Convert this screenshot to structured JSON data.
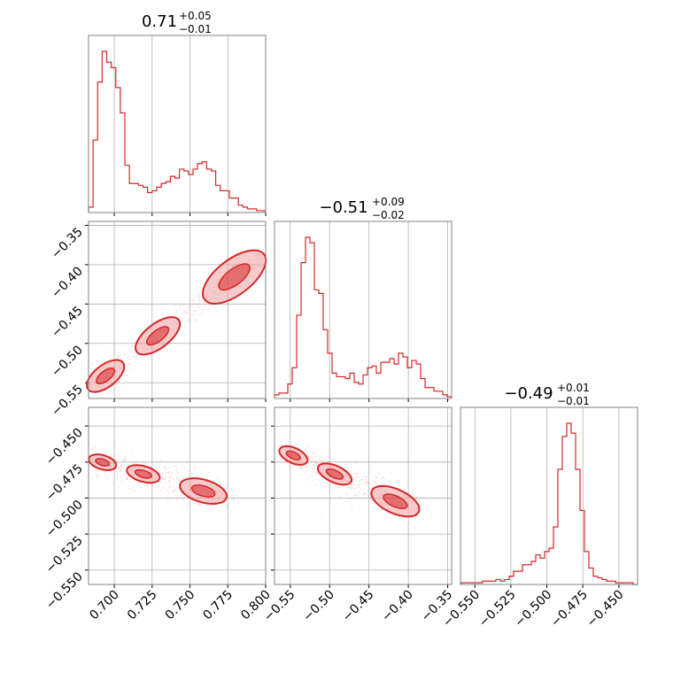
{
  "colors": {
    "accent": "#d62728",
    "fill": "#f0a0a3",
    "grid": "#b0b0b0"
  },
  "chart_data": [
    {
      "type": "histogram",
      "panel": "p11",
      "title": {
        "main": "0.71",
        "plus": "+0.05",
        "minus": "−0.01"
      },
      "xlim": [
        0.683,
        0.8
      ],
      "bins_x": [
        0.683,
        0.686,
        0.689,
        0.692,
        0.695,
        0.698,
        0.701,
        0.704,
        0.707,
        0.71,
        0.713,
        0.716,
        0.719,
        0.722,
        0.725,
        0.728,
        0.731,
        0.734,
        0.737,
        0.74,
        0.743,
        0.746,
        0.749,
        0.752,
        0.755,
        0.758,
        0.761,
        0.764,
        0.767,
        0.77,
        0.773,
        0.776,
        0.779,
        0.782,
        0.785,
        0.788,
        0.791,
        0.794,
        0.797,
        0.8
      ],
      "counts": [
        3,
        40,
        72,
        89,
        83,
        80,
        69,
        55,
        26,
        16,
        16,
        15,
        14,
        11,
        12,
        14,
        16,
        17,
        20,
        19,
        24,
        23,
        21,
        24,
        27,
        28,
        24,
        23,
        15,
        12,
        12,
        8,
        8,
        4,
        3,
        2,
        2,
        1,
        1
      ]
    },
    {
      "type": "scatter-contour",
      "panel": "p21",
      "xlim": [
        0.683,
        0.8
      ],
      "ylim": [
        -0.57,
        -0.345
      ],
      "yticks": [
        "−0.35",
        "−0.40",
        "−0.45",
        "−0.50",
        "−0.55"
      ],
      "ytick_values": [
        -0.35,
        -0.4,
        -0.45,
        -0.5,
        -0.55
      ],
      "trend_x": [
        0.685,
        0.8
      ],
      "trend_y": [
        -0.555,
        -0.385
      ]
    },
    {
      "type": "histogram",
      "panel": "p22",
      "title": {
        "main": "−0.51",
        "plus": "+0.09",
        "minus": "−0.02"
      },
      "xlim": [
        -0.57,
        -0.345
      ],
      "counts": [
        2,
        3,
        3,
        8,
        17,
        46,
        75,
        89,
        86,
        60,
        58,
        38,
        25,
        14,
        12,
        12,
        11,
        14,
        9,
        8,
        13,
        17,
        18,
        14,
        20,
        20,
        22,
        19,
        25,
        23,
        17,
        21,
        19,
        11,
        6,
        6,
        4,
        4,
        2,
        1
      ]
    },
    {
      "type": "scatter-contour",
      "panel": "p31",
      "xlim": [
        0.683,
        0.8
      ],
      "ylim": [
        -0.56,
        -0.437
      ],
      "xticks": [
        "0.700",
        "0.725",
        "0.750",
        "0.775",
        "0.800"
      ],
      "xtick_values": [
        0.7,
        0.725,
        0.75,
        0.775,
        0.8
      ],
      "yticks": [
        "−0.450",
        "−0.475",
        "−0.500",
        "−0.525",
        "−0.550"
      ],
      "ytick_values": [
        -0.45,
        -0.475,
        -0.5,
        -0.525,
        -0.55
      ],
      "trend_x": [
        0.685,
        0.775
      ],
      "trend_y": [
        -0.473,
        -0.5
      ]
    },
    {
      "type": "scatter-contour",
      "panel": "p32",
      "xlim": [
        -0.57,
        -0.345
      ],
      "ylim": [
        -0.56,
        -0.437
      ],
      "xticks": [
        "−0.55",
        "−0.50",
        "−0.45",
        "−0.40",
        "−0.35"
      ],
      "xtick_values": [
        -0.55,
        -0.5,
        -0.45,
        -0.4,
        -0.35
      ],
      "trend_x": [
        -0.56,
        -0.385
      ],
      "trend_y": [
        -0.467,
        -0.51
      ]
    },
    {
      "type": "histogram",
      "panel": "p33",
      "title": {
        "main": "−0.49",
        "plus": "+0.01",
        "minus": "−0.01"
      },
      "xlim": [
        -0.56,
        -0.437
      ],
      "xticks": [
        "−0.550",
        "−0.525",
        "−0.500",
        "−0.475",
        "−0.450"
      ],
      "xtick_values": [
        -0.55,
        -0.525,
        -0.5,
        -0.475,
        -0.45
      ],
      "counts": [
        1,
        1,
        1,
        1,
        1,
        2,
        2,
        2,
        3,
        2,
        3,
        5,
        8,
        8,
        12,
        12,
        14,
        18,
        16,
        20,
        22,
        35,
        70,
        90,
        98,
        92,
        70,
        45,
        20,
        10,
        5,
        4,
        3,
        2,
        2,
        1,
        1,
        1,
        1,
        0
      ]
    }
  ]
}
